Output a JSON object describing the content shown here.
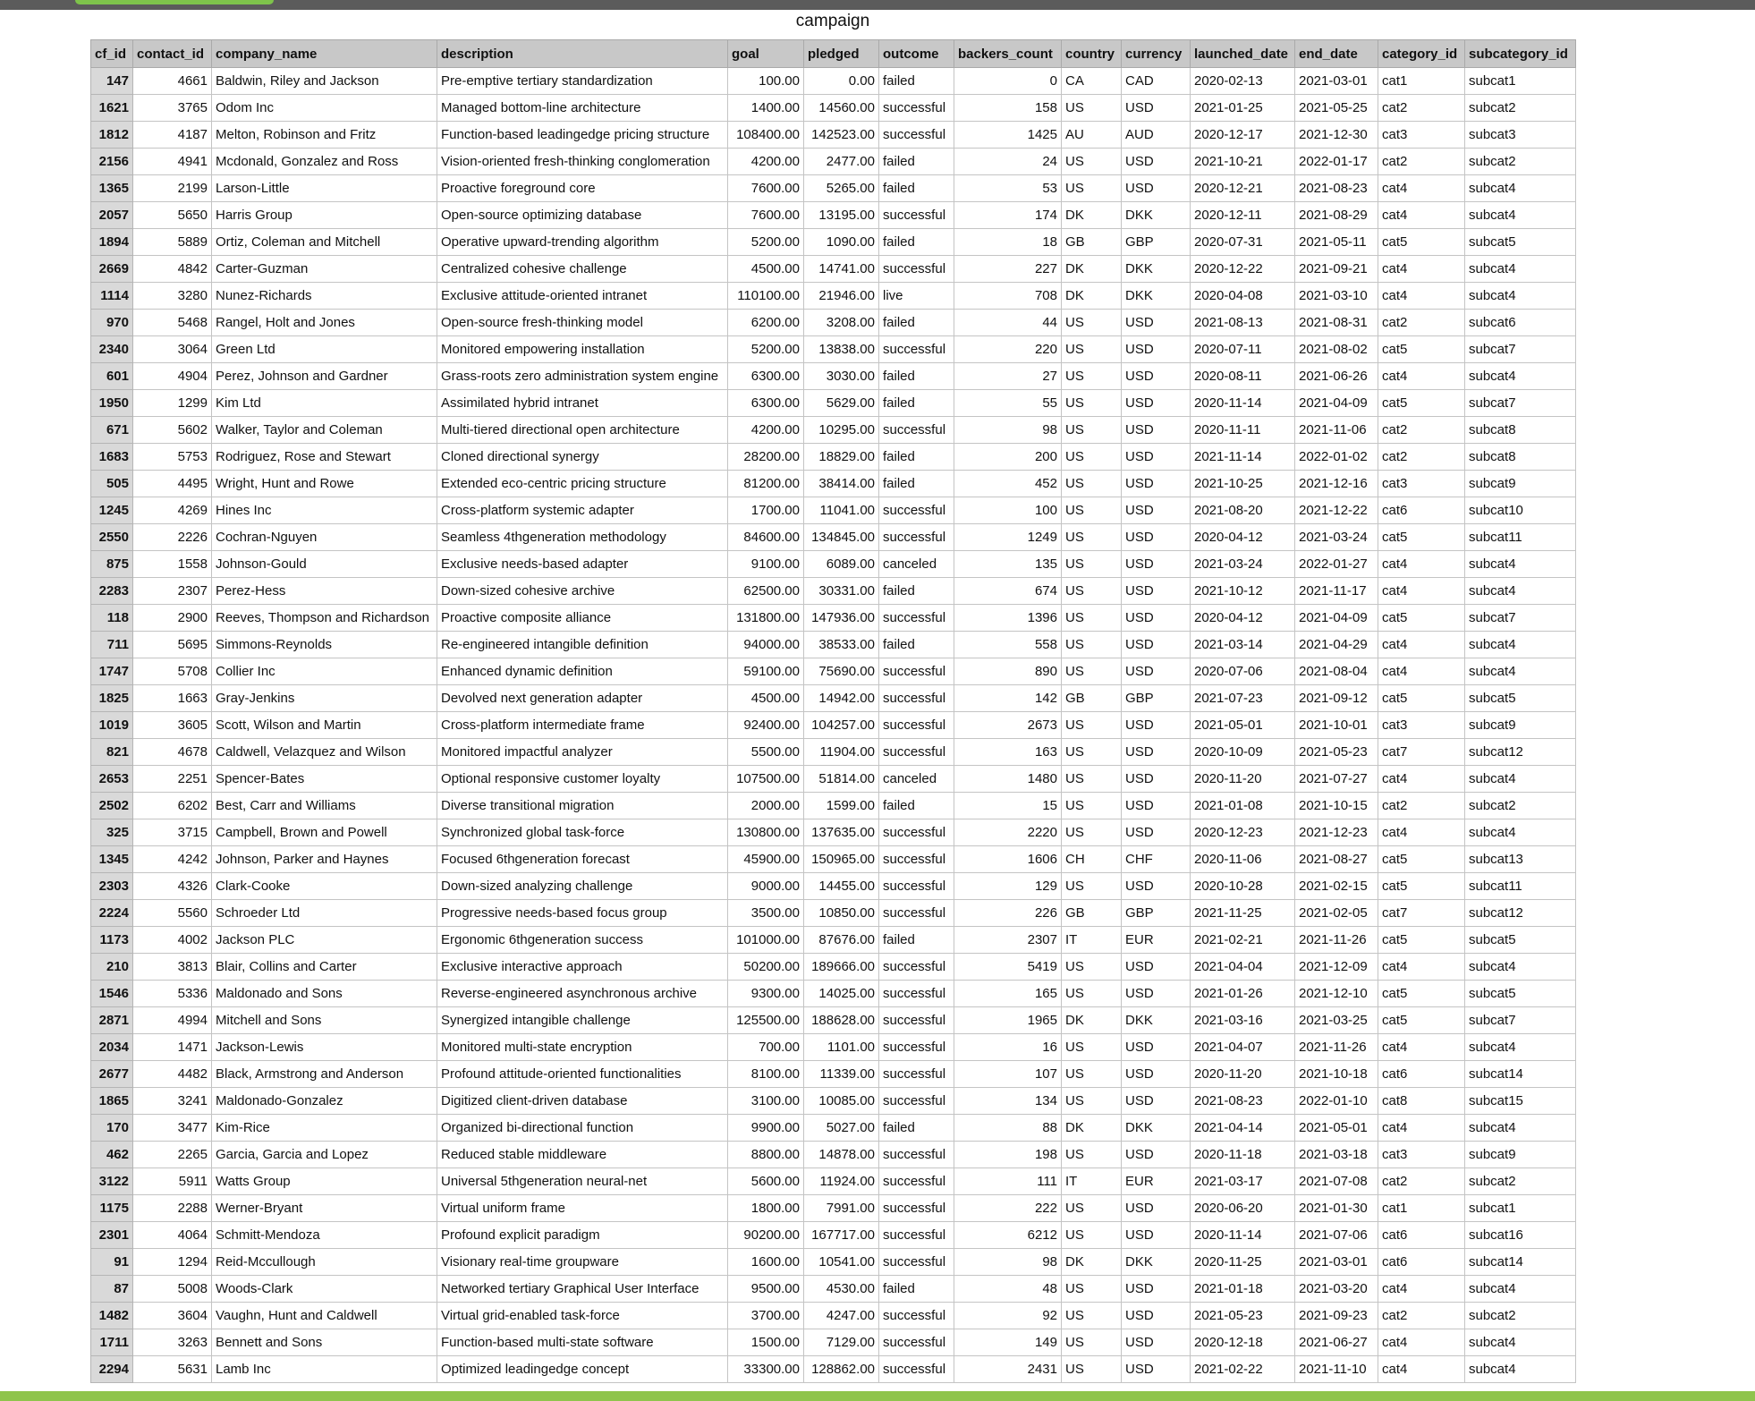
{
  "sheet": {
    "title": "campaign",
    "columns": [
      "cf_id",
      "contact_id",
      "company_name",
      "description",
      "goal",
      "pledged",
      "outcome",
      "backers_count",
      "country",
      "currency",
      "launched_date",
      "end_date",
      "category_id",
      "subcategory_id"
    ],
    "rows": [
      [
        "147",
        "4661",
        "Baldwin, Riley and Jackson",
        "Pre-emptive tertiary standardization",
        "100.00",
        "0.00",
        "failed",
        "0",
        "CA",
        "CAD",
        "2020-02-13",
        "2021-03-01",
        "cat1",
        "subcat1"
      ],
      [
        "1621",
        "3765",
        "Odom Inc",
        "Managed bottom-line architecture",
        "1400.00",
        "14560.00",
        "successful",
        "158",
        "US",
        "USD",
        "2021-01-25",
        "2021-05-25",
        "cat2",
        "subcat2"
      ],
      [
        "1812",
        "4187",
        "Melton, Robinson and Fritz",
        "Function-based leadingedge pricing structure",
        "108400.00",
        "142523.00",
        "successful",
        "1425",
        "AU",
        "AUD",
        "2020-12-17",
        "2021-12-30",
        "cat3",
        "subcat3"
      ],
      [
        "2156",
        "4941",
        "Mcdonald, Gonzalez and Ross",
        "Vision-oriented fresh-thinking conglomeration",
        "4200.00",
        "2477.00",
        "failed",
        "24",
        "US",
        "USD",
        "2021-10-21",
        "2022-01-17",
        "cat2",
        "subcat2"
      ],
      [
        "1365",
        "2199",
        "Larson-Little",
        "Proactive foreground core",
        "7600.00",
        "5265.00",
        "failed",
        "53",
        "US",
        "USD",
        "2020-12-21",
        "2021-08-23",
        "cat4",
        "subcat4"
      ],
      [
        "2057",
        "5650",
        "Harris Group",
        "Open-source optimizing database",
        "7600.00",
        "13195.00",
        "successful",
        "174",
        "DK",
        "DKK",
        "2020-12-11",
        "2021-08-29",
        "cat4",
        "subcat4"
      ],
      [
        "1894",
        "5889",
        "Ortiz, Coleman and Mitchell",
        "Operative upward-trending algorithm",
        "5200.00",
        "1090.00",
        "failed",
        "18",
        "GB",
        "GBP",
        "2020-07-31",
        "2021-05-11",
        "cat5",
        "subcat5"
      ],
      [
        "2669",
        "4842",
        "Carter-Guzman",
        "Centralized cohesive challenge",
        "4500.00",
        "14741.00",
        "successful",
        "227",
        "DK",
        "DKK",
        "2020-12-22",
        "2021-09-21",
        "cat4",
        "subcat4"
      ],
      [
        "1114",
        "3280",
        "Nunez-Richards",
        "Exclusive attitude-oriented intranet",
        "110100.00",
        "21946.00",
        "live",
        "708",
        "DK",
        "DKK",
        "2020-04-08",
        "2021-03-10",
        "cat4",
        "subcat4"
      ],
      [
        "970",
        "5468",
        "Rangel, Holt and Jones",
        "Open-source fresh-thinking model",
        "6200.00",
        "3208.00",
        "failed",
        "44",
        "US",
        "USD",
        "2021-08-13",
        "2021-08-31",
        "cat2",
        "subcat6"
      ],
      [
        "2340",
        "3064",
        "Green Ltd",
        "Monitored empowering installation",
        "5200.00",
        "13838.00",
        "successful",
        "220",
        "US",
        "USD",
        "2020-07-11",
        "2021-08-02",
        "cat5",
        "subcat7"
      ],
      [
        "601",
        "4904",
        "Perez, Johnson and Gardner",
        "Grass-roots zero administration system engine",
        "6300.00",
        "3030.00",
        "failed",
        "27",
        "US",
        "USD",
        "2020-08-11",
        "2021-06-26",
        "cat4",
        "subcat4"
      ],
      [
        "1950",
        "1299",
        "Kim Ltd",
        "Assimilated hybrid intranet",
        "6300.00",
        "5629.00",
        "failed",
        "55",
        "US",
        "USD",
        "2020-11-14",
        "2021-04-09",
        "cat5",
        "subcat7"
      ],
      [
        "671",
        "5602",
        "Walker, Taylor and Coleman",
        "Multi-tiered directional open architecture",
        "4200.00",
        "10295.00",
        "successful",
        "98",
        "US",
        "USD",
        "2020-11-11",
        "2021-11-06",
        "cat2",
        "subcat8"
      ],
      [
        "1683",
        "5753",
        "Rodriguez, Rose and Stewart",
        "Cloned directional synergy",
        "28200.00",
        "18829.00",
        "failed",
        "200",
        "US",
        "USD",
        "2021-11-14",
        "2022-01-02",
        "cat2",
        "subcat8"
      ],
      [
        "505",
        "4495",
        "Wright, Hunt and Rowe",
        "Extended eco-centric pricing structure",
        "81200.00",
        "38414.00",
        "failed",
        "452",
        "US",
        "USD",
        "2021-10-25",
        "2021-12-16",
        "cat3",
        "subcat9"
      ],
      [
        "1245",
        "4269",
        "Hines Inc",
        "Cross-platform systemic adapter",
        "1700.00",
        "11041.00",
        "successful",
        "100",
        "US",
        "USD",
        "2021-08-20",
        "2021-12-22",
        "cat6",
        "subcat10"
      ],
      [
        "2550",
        "2226",
        "Cochran-Nguyen",
        "Seamless 4thgeneration methodology",
        "84600.00",
        "134845.00",
        "successful",
        "1249",
        "US",
        "USD",
        "2020-04-12",
        "2021-03-24",
        "cat5",
        "subcat11"
      ],
      [
        "875",
        "1558",
        "Johnson-Gould",
        "Exclusive needs-based adapter",
        "9100.00",
        "6089.00",
        "canceled",
        "135",
        "US",
        "USD",
        "2021-03-24",
        "2022-01-27",
        "cat4",
        "subcat4"
      ],
      [
        "2283",
        "2307",
        "Perez-Hess",
        "Down-sized cohesive archive",
        "62500.00",
        "30331.00",
        "failed",
        "674",
        "US",
        "USD",
        "2021-10-12",
        "2021-11-17",
        "cat4",
        "subcat4"
      ],
      [
        "118",
        "2900",
        "Reeves, Thompson and Richardson",
        "Proactive composite alliance",
        "131800.00",
        "147936.00",
        "successful",
        "1396",
        "US",
        "USD",
        "2020-04-12",
        "2021-04-09",
        "cat5",
        "subcat7"
      ],
      [
        "711",
        "5695",
        "Simmons-Reynolds",
        "Re-engineered intangible definition",
        "94000.00",
        "38533.00",
        "failed",
        "558",
        "US",
        "USD",
        "2021-03-14",
        "2021-04-29",
        "cat4",
        "subcat4"
      ],
      [
        "1747",
        "5708",
        "Collier Inc",
        "Enhanced dynamic definition",
        "59100.00",
        "75690.00",
        "successful",
        "890",
        "US",
        "USD",
        "2020-07-06",
        "2021-08-04",
        "cat4",
        "subcat4"
      ],
      [
        "1825",
        "1663",
        "Gray-Jenkins",
        "Devolved next generation adapter",
        "4500.00",
        "14942.00",
        "successful",
        "142",
        "GB",
        "GBP",
        "2021-07-23",
        "2021-09-12",
        "cat5",
        "subcat5"
      ],
      [
        "1019",
        "3605",
        "Scott, Wilson and Martin",
        "Cross-platform intermediate frame",
        "92400.00",
        "104257.00",
        "successful",
        "2673",
        "US",
        "USD",
        "2021-05-01",
        "2021-10-01",
        "cat3",
        "subcat9"
      ],
      [
        "821",
        "4678",
        "Caldwell, Velazquez and Wilson",
        "Monitored impactful analyzer",
        "5500.00",
        "11904.00",
        "successful",
        "163",
        "US",
        "USD",
        "2020-10-09",
        "2021-05-23",
        "cat7",
        "subcat12"
      ],
      [
        "2653",
        "2251",
        "Spencer-Bates",
        "Optional responsive customer loyalty",
        "107500.00",
        "51814.00",
        "canceled",
        "1480",
        "US",
        "USD",
        "2020-11-20",
        "2021-07-27",
        "cat4",
        "subcat4"
      ],
      [
        "2502",
        "6202",
        "Best, Carr and Williams",
        "Diverse transitional migration",
        "2000.00",
        "1599.00",
        "failed",
        "15",
        "US",
        "USD",
        "2021-01-08",
        "2021-10-15",
        "cat2",
        "subcat2"
      ],
      [
        "325",
        "3715",
        "Campbell, Brown and Powell",
        "Synchronized global task-force",
        "130800.00",
        "137635.00",
        "successful",
        "2220",
        "US",
        "USD",
        "2020-12-23",
        "2021-12-23",
        "cat4",
        "subcat4"
      ],
      [
        "1345",
        "4242",
        "Johnson, Parker and Haynes",
        "Focused 6thgeneration forecast",
        "45900.00",
        "150965.00",
        "successful",
        "1606",
        "CH",
        "CHF",
        "2020-11-06",
        "2021-08-27",
        "cat5",
        "subcat13"
      ],
      [
        "2303",
        "4326",
        "Clark-Cooke",
        "Down-sized analyzing challenge",
        "9000.00",
        "14455.00",
        "successful",
        "129",
        "US",
        "USD",
        "2020-10-28",
        "2021-02-15",
        "cat5",
        "subcat11"
      ],
      [
        "2224",
        "5560",
        "Schroeder Ltd",
        "Progressive needs-based focus group",
        "3500.00",
        "10850.00",
        "successful",
        "226",
        "GB",
        "GBP",
        "2021-11-25",
        "2021-02-05",
        "cat7",
        "subcat12"
      ],
      [
        "1173",
        "4002",
        "Jackson PLC",
        "Ergonomic 6thgeneration success",
        "101000.00",
        "87676.00",
        "failed",
        "2307",
        "IT",
        "EUR",
        "2021-02-21",
        "2021-11-26",
        "cat5",
        "subcat5"
      ],
      [
        "210",
        "3813",
        "Blair, Collins and Carter",
        "Exclusive interactive approach",
        "50200.00",
        "189666.00",
        "successful",
        "5419",
        "US",
        "USD",
        "2021-04-04",
        "2021-12-09",
        "cat4",
        "subcat4"
      ],
      [
        "1546",
        "5336",
        "Maldonado and Sons",
        "Reverse-engineered asynchronous archive",
        "9300.00",
        "14025.00",
        "successful",
        "165",
        "US",
        "USD",
        "2021-01-26",
        "2021-12-10",
        "cat5",
        "subcat5"
      ],
      [
        "2871",
        "4994",
        "Mitchell and Sons",
        "Synergized intangible challenge",
        "125500.00",
        "188628.00",
        "successful",
        "1965",
        "DK",
        "DKK",
        "2021-03-16",
        "2021-03-25",
        "cat5",
        "subcat7"
      ],
      [
        "2034",
        "1471",
        "Jackson-Lewis",
        "Monitored multi-state encryption",
        "700.00",
        "1101.00",
        "successful",
        "16",
        "US",
        "USD",
        "2021-04-07",
        "2021-11-26",
        "cat4",
        "subcat4"
      ],
      [
        "2677",
        "4482",
        "Black, Armstrong and Anderson",
        "Profound attitude-oriented functionalities",
        "8100.00",
        "11339.00",
        "successful",
        "107",
        "US",
        "USD",
        "2020-11-20",
        "2021-10-18",
        "cat6",
        "subcat14"
      ],
      [
        "1865",
        "3241",
        "Maldonado-Gonzalez",
        "Digitized client-driven database",
        "3100.00",
        "10085.00",
        "successful",
        "134",
        "US",
        "USD",
        "2021-08-23",
        "2022-01-10",
        "cat8",
        "subcat15"
      ],
      [
        "170",
        "3477",
        "Kim-Rice",
        "Organized bi-directional function",
        "9900.00",
        "5027.00",
        "failed",
        "88",
        "DK",
        "DKK",
        "2021-04-14",
        "2021-05-01",
        "cat4",
        "subcat4"
      ],
      [
        "462",
        "2265",
        "Garcia, Garcia and Lopez",
        "Reduced stable middleware",
        "8800.00",
        "14878.00",
        "successful",
        "198",
        "US",
        "USD",
        "2020-11-18",
        "2021-03-18",
        "cat3",
        "subcat9"
      ],
      [
        "3122",
        "5911",
        "Watts Group",
        "Universal 5thgeneration neural-net",
        "5600.00",
        "11924.00",
        "successful",
        "111",
        "IT",
        "EUR",
        "2021-03-17",
        "2021-07-08",
        "cat2",
        "subcat2"
      ],
      [
        "1175",
        "2288",
        "Werner-Bryant",
        "Virtual uniform frame",
        "1800.00",
        "7991.00",
        "successful",
        "222",
        "US",
        "USD",
        "2020-06-20",
        "2021-01-30",
        "cat1",
        "subcat1"
      ],
      [
        "2301",
        "4064",
        "Schmitt-Mendoza",
        "Profound explicit paradigm",
        "90200.00",
        "167717.00",
        "successful",
        "6212",
        "US",
        "USD",
        "2020-11-14",
        "2021-07-06",
        "cat6",
        "subcat16"
      ],
      [
        "91",
        "1294",
        "Reid-Mccullough",
        "Visionary real-time groupware",
        "1600.00",
        "10541.00",
        "successful",
        "98",
        "DK",
        "DKK",
        "2020-11-25",
        "2021-03-01",
        "cat6",
        "subcat14"
      ],
      [
        "87",
        "5008",
        "Woods-Clark",
        "Networked tertiary Graphical User Interface",
        "9500.00",
        "4530.00",
        "failed",
        "48",
        "US",
        "USD",
        "2021-01-18",
        "2021-03-20",
        "cat4",
        "subcat4"
      ],
      [
        "1482",
        "3604",
        "Vaughn, Hunt and Caldwell",
        "Virtual grid-enabled task-force",
        "3700.00",
        "4247.00",
        "successful",
        "92",
        "US",
        "USD",
        "2021-05-23",
        "2021-09-23",
        "cat2",
        "subcat2"
      ],
      [
        "1711",
        "3263",
        "Bennett and Sons",
        "Function-based multi-state software",
        "1500.00",
        "7129.00",
        "successful",
        "149",
        "US",
        "USD",
        "2020-12-18",
        "2021-06-27",
        "cat4",
        "subcat4"
      ],
      [
        "2294",
        "5631",
        "Lamb Inc",
        "Optimized leadingedge concept",
        "33300.00",
        "128862.00",
        "successful",
        "2431",
        "US",
        "USD",
        "2021-02-22",
        "2021-11-10",
        "cat4",
        "subcat4"
      ]
    ]
  }
}
